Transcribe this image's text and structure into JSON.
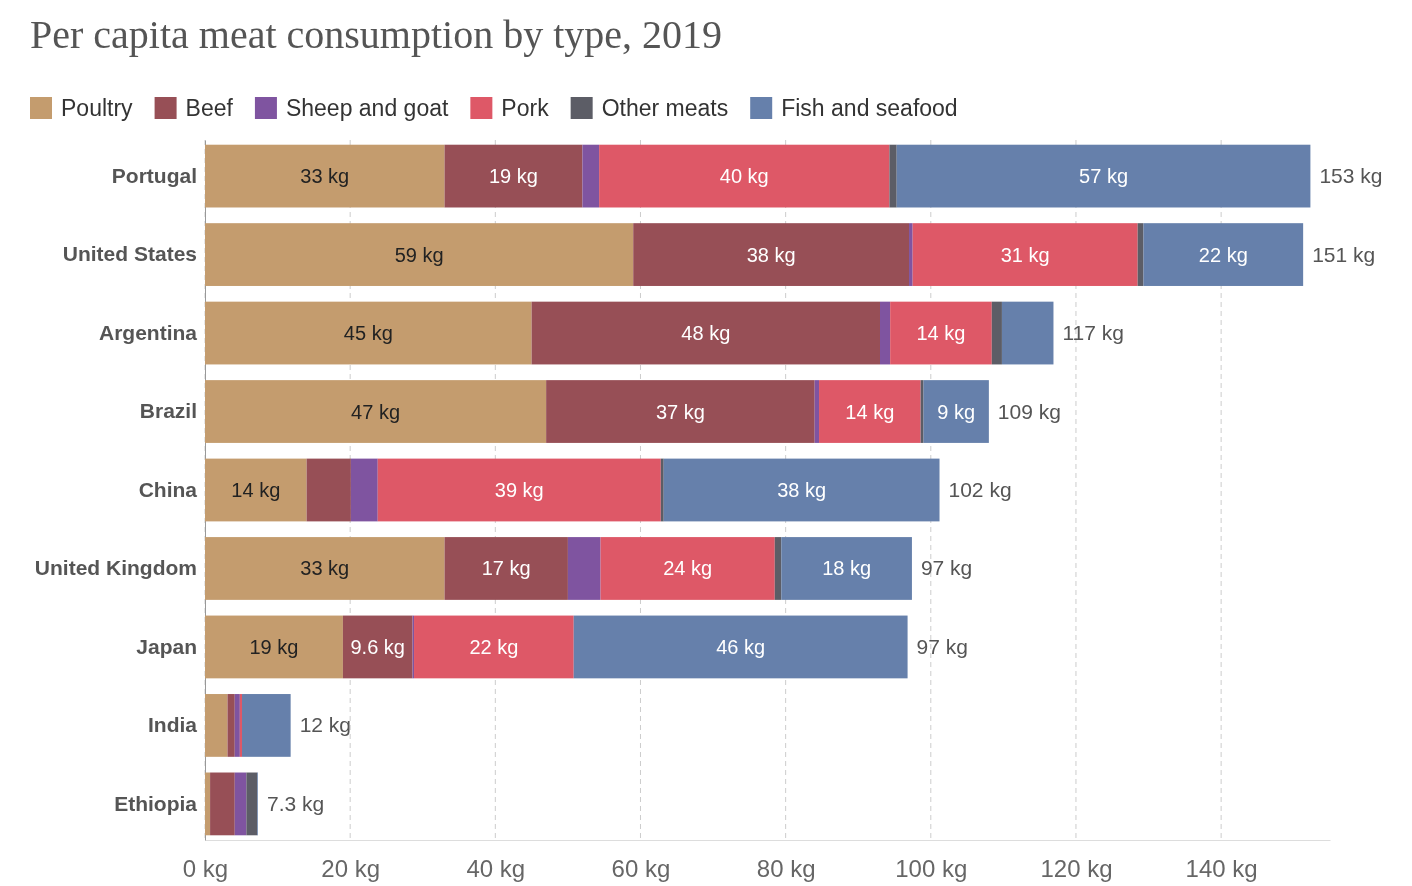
{
  "chart_data": {
    "type": "bar",
    "title": "Per capita meat consumption by type, 2019",
    "orientation": "horizontal",
    "stacked": true,
    "legend": "top",
    "grid": "x",
    "categories": [
      "Portugal",
      "United States",
      "Argentina",
      "Brazil",
      "China",
      "United Kingdom",
      "Japan",
      "India",
      "Ethiopia"
    ],
    "series": [
      {
        "name": "Poultry",
        "color": "#c49c6e",
        "values": [
          33,
          59,
          45,
          47,
          14,
          33,
          19,
          3.1,
          0.7
        ],
        "value_labels": [
          "33 kg",
          "59 kg",
          "45 kg",
          "47 kg",
          "14 kg",
          "33 kg",
          "19 kg",
          null,
          null
        ]
      },
      {
        "name": "Beef",
        "color": "#974f56",
        "values": [
          19,
          38,
          48,
          37,
          6.1,
          17,
          9.6,
          1.0,
          3.4
        ],
        "value_labels": [
          "19 kg",
          "38 kg",
          "48 kg",
          "37 kg",
          null,
          "17 kg",
          "9.6 kg",
          null,
          null
        ]
      },
      {
        "name": "Sheep and goat",
        "color": "#7f54a0",
        "values": [
          2.3,
          0.5,
          1.4,
          0.6,
          3.7,
          4.5,
          0.2,
          0.7,
          1.6
        ],
        "value_labels": [
          null,
          null,
          null,
          null,
          null,
          null,
          null,
          null,
          null
        ]
      },
      {
        "name": "Pork",
        "color": "#de5867",
        "values": [
          40,
          31,
          14,
          14,
          39,
          24,
          22,
          0.3,
          0
        ],
        "value_labels": [
          "40 kg",
          "31 kg",
          "14 kg",
          "14 kg",
          "39 kg",
          "24 kg",
          "22 kg",
          null,
          null
        ]
      },
      {
        "name": "Other meats",
        "color": "#5c5d66",
        "values": [
          1.0,
          0.8,
          1.4,
          0.4,
          0.4,
          0.9,
          0,
          0,
          1.5
        ],
        "value_labels": [
          null,
          null,
          null,
          null,
          null,
          null,
          null,
          null,
          null
        ]
      },
      {
        "name": "Fish and seafood",
        "color": "#6680ab",
        "values": [
          57,
          22,
          7.1,
          9,
          38,
          18,
          46,
          6.7,
          0.1
        ],
        "value_labels": [
          "57 kg",
          "22 kg",
          null,
          "9 kg",
          "38 kg",
          "18 kg",
          "46 kg",
          null,
          null
        ]
      }
    ],
    "totals": [
      "153 kg",
      "151 kg",
      "117 kg",
      "109 kg",
      "102 kg",
      "97 kg",
      "97 kg",
      "12 kg",
      "7.3 kg"
    ],
    "xlim": [
      0,
      155
    ],
    "xticks": [
      {
        "value": 0,
        "label": "0 kg"
      },
      {
        "value": 20,
        "label": "20 kg"
      },
      {
        "value": 40,
        "label": "40 kg"
      },
      {
        "value": 60,
        "label": "60 kg"
      },
      {
        "value": 80,
        "label": "80 kg"
      },
      {
        "value": 100,
        "label": "100 kg"
      },
      {
        "value": 120,
        "label": "120 kg"
      },
      {
        "value": 140,
        "label": "140 kg"
      }
    ]
  }
}
